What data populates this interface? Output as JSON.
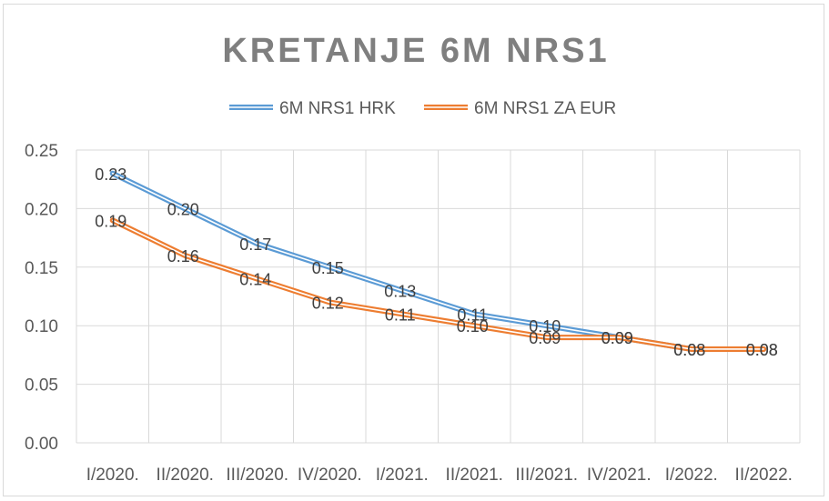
{
  "chart_data": {
    "type": "line",
    "title": "KRETANJE 6M NRS1",
    "categories": [
      "I/2020.",
      "II/2020.",
      "III/2020.",
      "IV/2020.",
      "I/2021.",
      "II/2021.",
      "III/2021.",
      "IV/2021.",
      "I/2022.",
      "II/2022."
    ],
    "series": [
      {
        "name": "6M NRS1 HRK",
        "color": "#5b9bd5",
        "values": [
          0.23,
          0.2,
          0.17,
          0.15,
          0.13,
          0.11,
          0.1,
          0.09,
          0.08,
          0.08
        ],
        "labels": [
          "0.23",
          "0.20",
          "0.17",
          "0.15",
          "0.13",
          "0.11",
          "0.10",
          "0.09",
          "0.08",
          "0.08"
        ]
      },
      {
        "name": "6M NRS1 ZA EUR",
        "color": "#ed7d31",
        "values": [
          0.19,
          0.16,
          0.14,
          0.12,
          0.11,
          0.1,
          0.09,
          0.09,
          0.08,
          0.08
        ],
        "labels": [
          "0.19",
          "0.16",
          "0.14",
          "0.12",
          "0.11",
          "0.10",
          "0.09",
          "0.09",
          "0.08",
          "0.08"
        ]
      }
    ],
    "yticks": [
      "0.00",
      "0.05",
      "0.10",
      "0.15",
      "0.20",
      "0.25"
    ],
    "ylim": [
      0,
      0.25
    ],
    "grid": true,
    "legend": "top"
  }
}
